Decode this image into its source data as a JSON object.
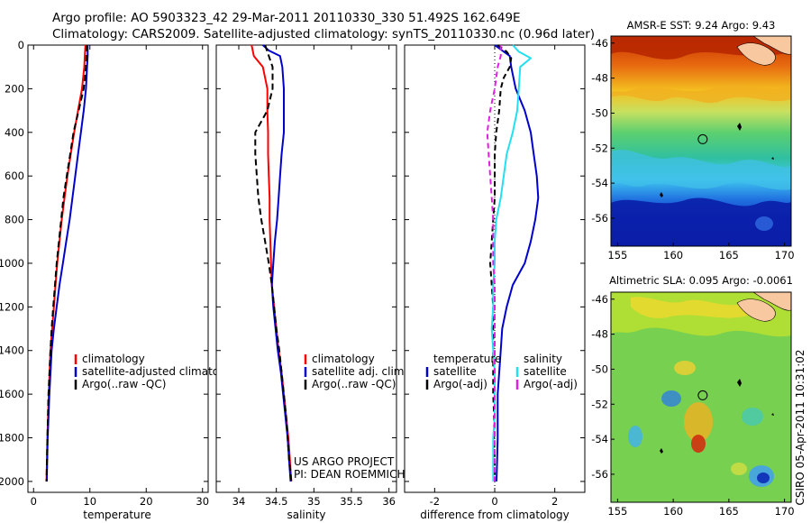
{
  "header": {
    "line1": "Argo profile: AO 5903323_42 29-Mar-2011 20110330_330 51.492S 162.649E",
    "line2": "Climatology: CARS2009. Satellite-adjusted climatology: synTS_20110330.nc (0.96d later)"
  },
  "credit": {
    "project": "US ARGO PROJECT",
    "pi": "PI: DEAN ROEMMICH",
    "stamp": "CSIRO 05-Apr-2011 10:31:02"
  },
  "colors": {
    "climatology": "#ff0000",
    "satellite": "#0000cc",
    "argo": "#000000",
    "satellite_salinity": "#22e0f0",
    "argo_salinity": "#e020e0",
    "land": "#f8c8a0"
  },
  "chart_data": [
    {
      "id": "temperature",
      "type": "line",
      "xlabel": "temperature",
      "ylabel": "",
      "xlim": [
        -1,
        31
      ],
      "ylim": [
        2050,
        0
      ],
      "xticks": [
        0,
        10,
        20,
        30
      ],
      "yticks": [
        0,
        200,
        400,
        600,
        800,
        1000,
        1200,
        1400,
        1600,
        1800,
        2000
      ],
      "legend": [
        "climatology",
        "satellite-adjusted climatology",
        "Argo(..raw -QC)"
      ],
      "series": [
        {
          "name": "climatology",
          "color": "#ff0000",
          "dash": "",
          "y": [
            0,
            50,
            100,
            200,
            300,
            400,
            500,
            600,
            700,
            800,
            900,
            1000,
            1100,
            1200,
            1300,
            1400,
            1600,
            1800,
            2000
          ],
          "x": [
            9.2,
            9.1,
            9.0,
            8.6,
            7.9,
            7.2,
            6.6,
            6.0,
            5.5,
            5.0,
            4.6,
            4.2,
            3.9,
            3.6,
            3.3,
            3.0,
            2.7,
            2.45,
            2.3
          ]
        },
        {
          "name": "satellite-adjusted climatology",
          "color": "#0000cc",
          "dash": "",
          "y": [
            0,
            50,
            100,
            200,
            300,
            400,
            500,
            600,
            700,
            800,
            900,
            1000,
            1100,
            1200,
            1300,
            1400,
            1600,
            1800,
            2000
          ],
          "x": [
            9.6,
            9.6,
            9.5,
            9.3,
            8.9,
            8.4,
            7.9,
            7.4,
            6.9,
            6.4,
            5.8,
            5.2,
            4.6,
            4.1,
            3.6,
            3.2,
            2.8,
            2.5,
            2.35
          ]
        },
        {
          "name": "Argo(..raw -QC)",
          "color": "#000000",
          "dash": "7,4",
          "y": [
            0,
            50,
            100,
            200,
            300,
            400,
            500,
            600,
            700,
            800,
            900,
            1000,
            1100,
            1200,
            1300,
            1400,
            1600,
            1800,
            2000
          ],
          "x": [
            9.4,
            9.4,
            9.3,
            8.9,
            8.0,
            7.1,
            6.5,
            5.9,
            5.3,
            4.9,
            4.5,
            4.1,
            3.8,
            3.5,
            3.2,
            3.0,
            2.65,
            2.45,
            2.3
          ]
        }
      ]
    },
    {
      "id": "salinity",
      "type": "line",
      "xlabel": "salinity",
      "ylabel": "",
      "xlim": [
        33.7,
        36.1
      ],
      "ylim": [
        2050,
        0
      ],
      "xticks": [
        34,
        34.5,
        35,
        35.5,
        36
      ],
      "yticks": [
        0,
        200,
        400,
        600,
        800,
        1000,
        1200,
        1400,
        1600,
        1800,
        2000
      ],
      "legend": [
        "climatology",
        "satellite adj. clim.",
        "Argo(..raw -QC)"
      ],
      "series": [
        {
          "name": "climatology",
          "color": "#ff0000",
          "dash": "",
          "y": [
            0,
            50,
            100,
            200,
            300,
            400,
            500,
            600,
            700,
            800,
            900,
            1000,
            1100,
            1200,
            1300,
            1400,
            1500,
            1600,
            1700,
            1800,
            1900,
            2000
          ],
          "x": [
            34.17,
            34.2,
            34.32,
            34.38,
            34.38,
            34.39,
            34.39,
            34.4,
            34.41,
            34.41,
            34.42,
            34.43,
            34.44,
            34.47,
            34.5,
            34.53,
            34.57,
            34.6,
            34.63,
            34.66,
            34.68,
            34.7
          ]
        },
        {
          "name": "satellite adj. clim.",
          "color": "#0000cc",
          "dash": "",
          "y": [
            0,
            25,
            50,
            100,
            200,
            300,
            400,
            500,
            600,
            700,
            800,
            900,
            1000,
            1100,
            1200,
            1300,
            1400,
            1500,
            1600,
            1700,
            1800,
            1900,
            2000
          ],
          "x": [
            34.32,
            34.4,
            34.55,
            34.58,
            34.6,
            34.6,
            34.6,
            34.57,
            34.55,
            34.53,
            34.51,
            34.48,
            34.46,
            34.44,
            34.46,
            34.49,
            34.52,
            34.56,
            34.59,
            34.62,
            34.65,
            34.67,
            34.69
          ]
        },
        {
          "name": "Argo(..raw -QC)",
          "color": "#000000",
          "dash": "7,4",
          "y": [
            0,
            50,
            100,
            200,
            300,
            400,
            500,
            600,
            700,
            800,
            900,
            1000,
            1100,
            1200,
            1300,
            1400,
            1500,
            1600,
            1700,
            1800,
            1900,
            2000
          ],
          "x": [
            34.35,
            34.4,
            34.45,
            34.45,
            34.38,
            34.22,
            34.22,
            34.24,
            34.26,
            34.3,
            34.35,
            34.4,
            34.44,
            34.47,
            34.5,
            34.54,
            34.57,
            34.6,
            34.63,
            34.65,
            34.67,
            34.7
          ]
        }
      ]
    },
    {
      "id": "difference",
      "type": "line",
      "xlabel": "difference from climatology",
      "ylabel": "",
      "xlim": [
        -3,
        3
      ],
      "ylim": [
        2050,
        0
      ],
      "xticks": [
        -2,
        0,
        2
      ],
      "yticks": [
        0,
        200,
        400,
        600,
        800,
        1000,
        1200,
        1400,
        1600,
        1800,
        2000
      ],
      "legend_titles": [
        "temperature",
        "salinity"
      ],
      "legend": [
        "satellite",
        "Argo(-adj)",
        "satellite",
        "Argo(-adj)"
      ],
      "series": [
        {
          "name": "satellite",
          "group": "temperature",
          "color": "#0000cc",
          "dash": "",
          "y": [
            0,
            50,
            100,
            200,
            300,
            400,
            500,
            600,
            700,
            800,
            900,
            1000,
            1100,
            1200,
            1300,
            1400,
            1500,
            1600,
            1700,
            1800,
            1900,
            2000
          ],
          "x": [
            0.0,
            0.5,
            0.55,
            0.7,
            1.0,
            1.2,
            1.3,
            1.4,
            1.45,
            1.35,
            1.2,
            1.0,
            0.6,
            0.4,
            0.25,
            0.2,
            0.15,
            0.1,
            0.1,
            0.1,
            0.08,
            0.06
          ]
        },
        {
          "name": "Argo(-adj)",
          "group": "temperature",
          "color": "#000000",
          "dash": "6,4",
          "y": [
            0,
            30,
            60,
            100,
            150,
            200,
            300,
            400,
            500,
            600,
            700,
            800,
            900,
            1000,
            1100,
            1200,
            1300,
            1400,
            1500,
            1600,
            1700,
            1800,
            1900,
            2000
          ],
          "x": [
            0.1,
            0.4,
            0.55,
            0.5,
            0.3,
            0.2,
            0.15,
            0.05,
            0.0,
            0.0,
            0.0,
            -0.05,
            -0.1,
            -0.15,
            -0.1,
            -0.05,
            -0.05,
            -0.05,
            -0.05,
            -0.05,
            -0.02,
            -0.02,
            0.0,
            0.0
          ]
        },
        {
          "name": "satellite",
          "group": "salinity",
          "color": "#22e0f0",
          "dash": "",
          "y": [
            0,
            30,
            60,
            100,
            200,
            300,
            400,
            500,
            600,
            700,
            800,
            900,
            1000,
            1100,
            1200,
            1300,
            1400,
            1500,
            1600,
            1700,
            1800,
            1900,
            2000
          ],
          "x": [
            0.6,
            0.8,
            1.2,
            0.85,
            0.8,
            0.75,
            0.6,
            0.4,
            0.3,
            0.2,
            0.05,
            0.0,
            0.0,
            -0.05,
            -0.05,
            -0.1,
            -0.05,
            0.0,
            0.0,
            0.0,
            -0.05,
            -0.05,
            -0.05
          ]
        },
        {
          "name": "Argo(-adj)",
          "group": "salinity",
          "color": "#e020e0",
          "dash": "6,4",
          "y": [
            0,
            50,
            100,
            200,
            300,
            400,
            500,
            600,
            700,
            800,
            900,
            1000,
            1100,
            1200,
            1300,
            1400,
            1500,
            1600,
            1700,
            1800,
            1900,
            2000
          ],
          "x": [
            0.2,
            0.2,
            0.1,
            0.0,
            -0.15,
            -0.25,
            -0.2,
            -0.15,
            -0.1,
            -0.05,
            -0.05,
            -0.05,
            0.0,
            0.0,
            0.0,
            0.0,
            0.0,
            0.0,
            0.0,
            0.0,
            0.0,
            0.0
          ]
        }
      ]
    },
    {
      "id": "sst-map",
      "type": "heatmap",
      "title": "AMSR-E SST: 9.24 Argo: 9.43",
      "xlim": [
        154.4,
        170.6
      ],
      "ylim": [
        -57.6,
        -45.6
      ],
      "xticks": [
        155,
        160,
        165,
        170
      ],
      "yticks": [
        -46,
        -48,
        -50,
        -52,
        -54,
        -56
      ],
      "marker": {
        "lon": 162.649,
        "lat": -51.492
      }
    },
    {
      "id": "sla-map",
      "type": "heatmap",
      "title": "Altimetric SLA: 0.095 Argo: -0.0061",
      "xlim": [
        154.4,
        170.6
      ],
      "ylim": [
        -57.6,
        -45.6
      ],
      "xticks": [
        155,
        160,
        165,
        170
      ],
      "yticks": [
        -46,
        -48,
        -50,
        -52,
        -54,
        -56
      ],
      "marker": {
        "lon": 162.649,
        "lat": -51.492
      }
    }
  ]
}
